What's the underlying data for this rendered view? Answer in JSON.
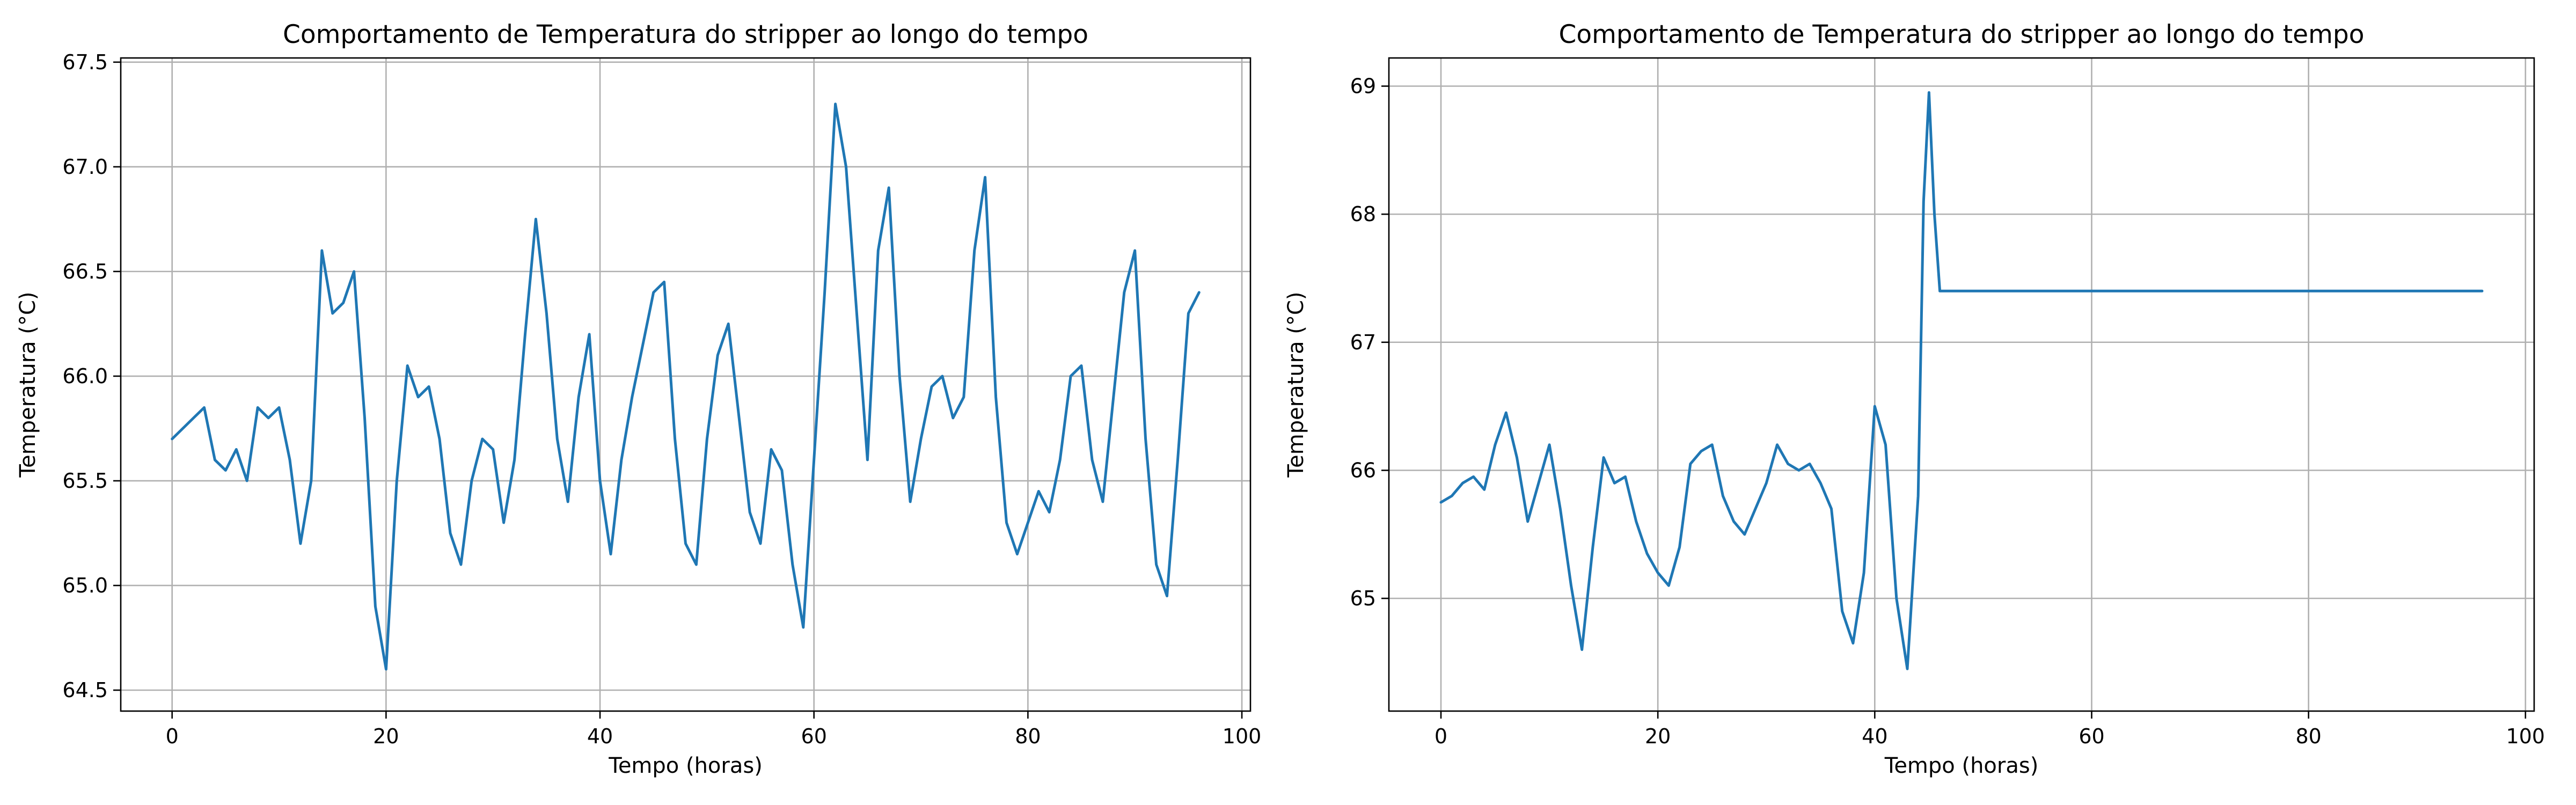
{
  "chart_data": [
    {
      "type": "line",
      "title": "Comportamento de Temperatura do stripper ao longo do tempo",
      "xlabel": "Tempo (horas)",
      "ylabel": "Temperatura (°C)",
      "xlim": [
        -4.8,
        100.8
      ],
      "ylim": [
        64.4,
        67.52
      ],
      "xticks": [
        0,
        20,
        40,
        60,
        80,
        100
      ],
      "yticks": [
        64.5,
        65.0,
        65.5,
        66.0,
        66.5,
        67.0,
        67.5
      ],
      "xtick_labels": [
        "0",
        "20",
        "40",
        "60",
        "80",
        "100"
      ],
      "ytick_labels": [
        "64.5",
        "65.0",
        "65.5",
        "66.0",
        "66.5",
        "67.0",
        "67.5"
      ],
      "grid": true,
      "line_color": "#1f77b4",
      "series": [
        {
          "x": [
            0,
            1,
            2,
            3,
            4,
            5,
            6,
            7,
            8,
            9,
            10,
            11,
            12,
            13,
            14,
            15,
            16,
            17,
            18,
            19,
            20,
            21,
            22,
            23,
            24,
            25,
            26,
            27,
            28,
            29,
            30,
            31,
            32,
            33,
            34,
            35,
            36,
            37,
            38,
            39,
            40,
            41,
            42,
            43,
            44,
            45,
            46,
            47,
            48,
            49,
            50,
            51,
            52,
            53,
            54,
            55,
            56,
            57,
            58,
            59,
            60,
            61,
            62,
            63,
            64,
            65,
            66,
            67,
            68,
            69,
            70,
            71,
            72,
            73,
            74,
            75,
            76,
            77,
            78,
            79,
            80,
            81,
            82,
            83,
            84,
            85,
            86,
            87,
            88,
            89,
            90,
            91,
            92,
            93,
            94,
            95,
            96
          ],
          "y": [
            65.7,
            65.75,
            65.8,
            65.85,
            65.6,
            65.55,
            65.65,
            65.5,
            65.85,
            65.8,
            65.85,
            65.6,
            65.2,
            65.5,
            66.6,
            66.3,
            66.35,
            66.5,
            65.8,
            64.9,
            64.6,
            65.5,
            66.05,
            65.9,
            65.95,
            65.7,
            65.25,
            65.1,
            65.5,
            65.7,
            65.65,
            65.3,
            65.6,
            66.2,
            66.75,
            66.3,
            65.7,
            65.4,
            65.9,
            66.2,
            65.5,
            65.15,
            65.6,
            65.9,
            66.15,
            66.4,
            66.45,
            65.7,
            65.2,
            65.1,
            65.7,
            66.1,
            66.25,
            65.8,
            65.35,
            65.2,
            65.65,
            65.55,
            65.1,
            64.8,
            65.6,
            66.4,
            67.3,
            67.0,
            66.3,
            65.6,
            66.6,
            66.9,
            66.0,
            65.4,
            65.7,
            65.95,
            66.0,
            65.8,
            65.9,
            66.6,
            66.95,
            65.9,
            65.3,
            65.15,
            65.3,
            65.45,
            65.35,
            65.6,
            66.0,
            66.05,
            65.6,
            65.4,
            65.9,
            66.4,
            66.6,
            65.7,
            65.1,
            64.95,
            65.6,
            66.3,
            66.4
          ]
        }
      ]
    },
    {
      "type": "line",
      "title": "Comportamento de Temperatura do stripper ao longo do tempo",
      "xlabel": "Tempo (horas)",
      "ylabel": "Temperatura (°C)",
      "xlim": [
        -4.8,
        100.8
      ],
      "ylim": [
        64.12,
        69.22
      ],
      "xticks": [
        0,
        20,
        40,
        60,
        80,
        100
      ],
      "yticks": [
        65,
        66,
        67,
        68,
        69
      ],
      "xtick_labels": [
        "0",
        "20",
        "40",
        "60",
        "80",
        "100"
      ],
      "ytick_labels": [
        "65",
        "66",
        "67",
        "68",
        "69"
      ],
      "grid": true,
      "line_color": "#1f77b4",
      "series": [
        {
          "x": [
            0,
            1,
            2,
            3,
            4,
            5,
            6,
            7,
            8,
            9,
            10,
            11,
            12,
            13,
            14,
            15,
            16,
            17,
            18,
            19,
            20,
            21,
            22,
            23,
            24,
            25,
            26,
            27,
            28,
            29,
            30,
            31,
            32,
            33,
            34,
            35,
            36,
            37,
            38,
            39,
            40,
            41,
            42,
            43,
            44,
            44.5,
            45,
            45.5,
            46,
            50,
            60,
            70,
            80,
            90,
            96
          ],
          "y": [
            65.75,
            65.8,
            65.9,
            65.95,
            65.85,
            66.2,
            66.45,
            66.1,
            65.6,
            65.9,
            66.2,
            65.7,
            65.1,
            64.6,
            65.4,
            66.1,
            65.9,
            65.95,
            65.6,
            65.35,
            65.2,
            65.1,
            65.4,
            66.05,
            66.15,
            66.2,
            65.8,
            65.6,
            65.5,
            65.7,
            65.9,
            66.2,
            66.05,
            66.0,
            66.05,
            65.9,
            65.7,
            64.9,
            64.65,
            65.2,
            66.5,
            66.2,
            65.0,
            64.45,
            65.8,
            68.1,
            68.95,
            68.0,
            67.4,
            67.4,
            67.4,
            67.4,
            67.4,
            67.4,
            67.4
          ]
        }
      ]
    }
  ]
}
